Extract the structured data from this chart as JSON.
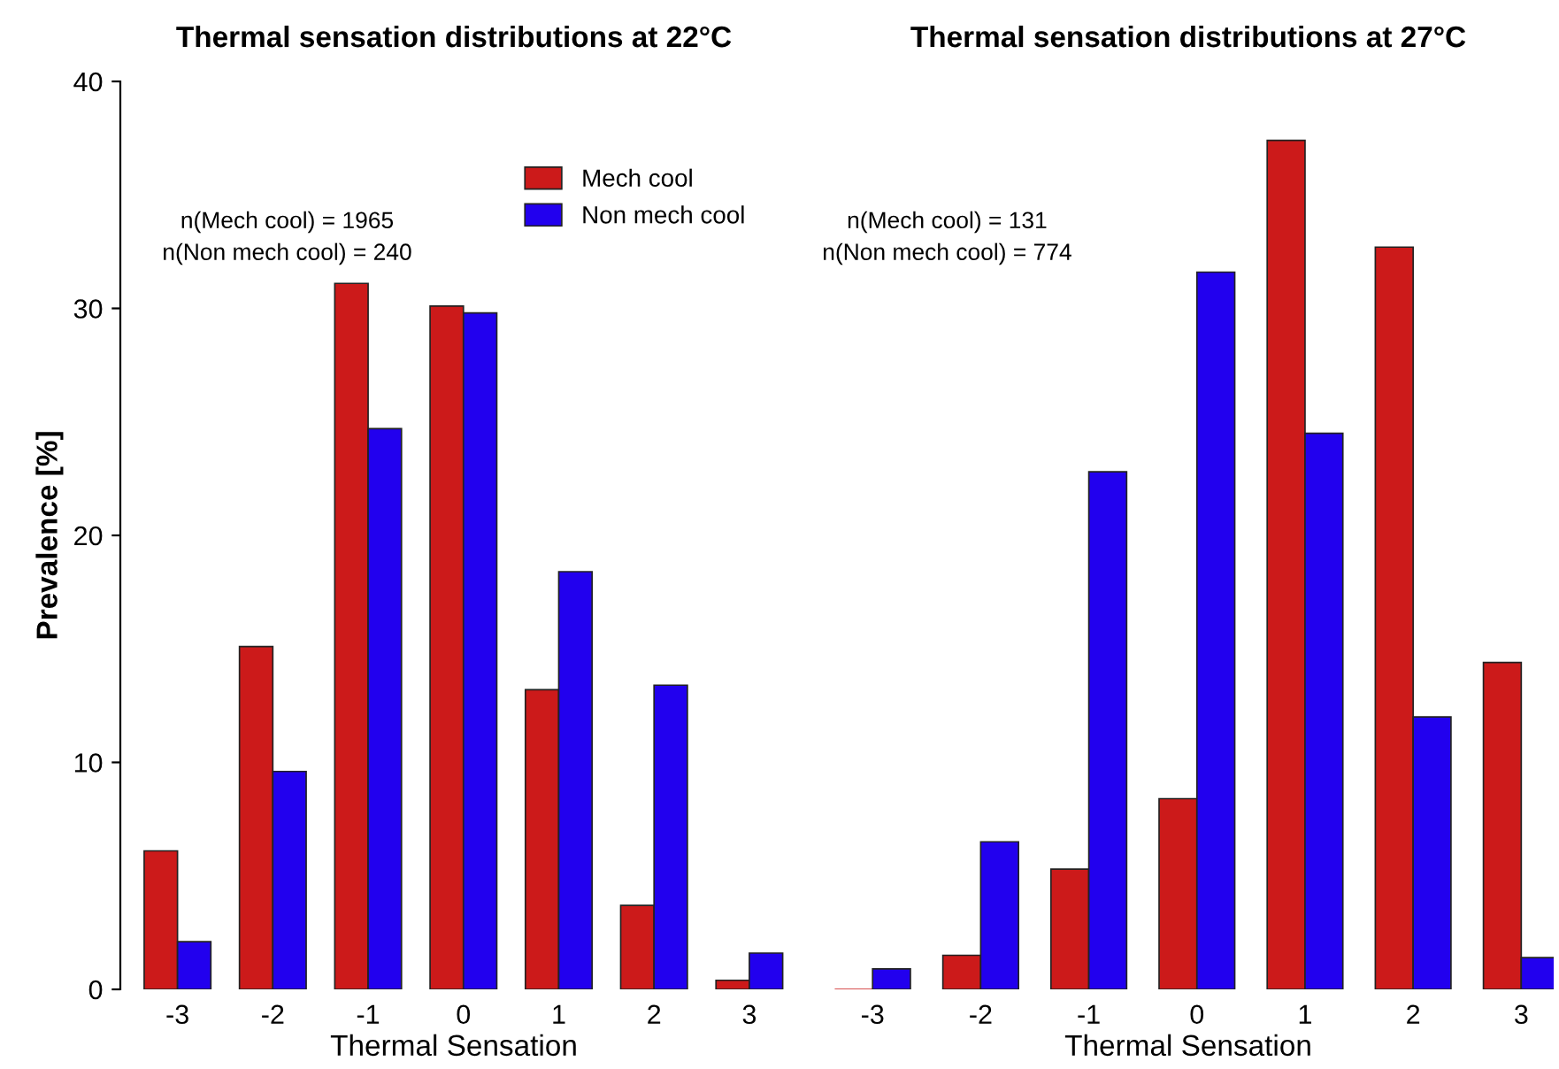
{
  "chart_data": [
    {
      "type": "bar",
      "title": "Thermal sensation distributions at 22°C",
      "xlabel": "Thermal Sensation",
      "ylabel": "Prevalence [%]",
      "categories": [
        "-3",
        "-2",
        "-1",
        "0",
        "1",
        "2",
        "3"
      ],
      "series": [
        {
          "name": "Mech cool",
          "color": "#cc1a1a",
          "values": [
            6.1,
            15.1,
            31.1,
            30.1,
            13.2,
            3.7,
            0.4
          ]
        },
        {
          "name": "Non mech cool",
          "color": "#2200ee",
          "values": [
            2.1,
            9.6,
            24.7,
            29.8,
            18.4,
            13.4,
            1.6
          ]
        }
      ],
      "ylim": [
        0,
        40
      ],
      "yticks": [
        0,
        10,
        20,
        30,
        40
      ],
      "grid": false,
      "legend": "top right",
      "annotations": [
        "n(Mech cool) = 1965",
        "n(Non mech cool) = 240"
      ]
    },
    {
      "type": "bar",
      "title": "Thermal sensation distributions at 27°C",
      "xlabel": "Thermal Sensation",
      "categories": [
        "-3",
        "-2",
        "-1",
        "0",
        "1",
        "2",
        "3"
      ],
      "series": [
        {
          "color": "#cc1a1a",
          "values": [
            0,
            1.5,
            5.3,
            8.4,
            37.4,
            32.7,
            14.4
          ]
        },
        {
          "color": "#2200ee",
          "values": [
            0.9,
            6.5,
            22.8,
            31.6,
            24.5,
            12.0,
            1.4
          ]
        }
      ],
      "ylim": [
        0,
        40
      ],
      "tick_labels": "x",
      "grid": false,
      "annotations": [
        "n(Mech cool) = 131",
        "n(Non mech cool) = 774"
      ]
    }
  ]
}
